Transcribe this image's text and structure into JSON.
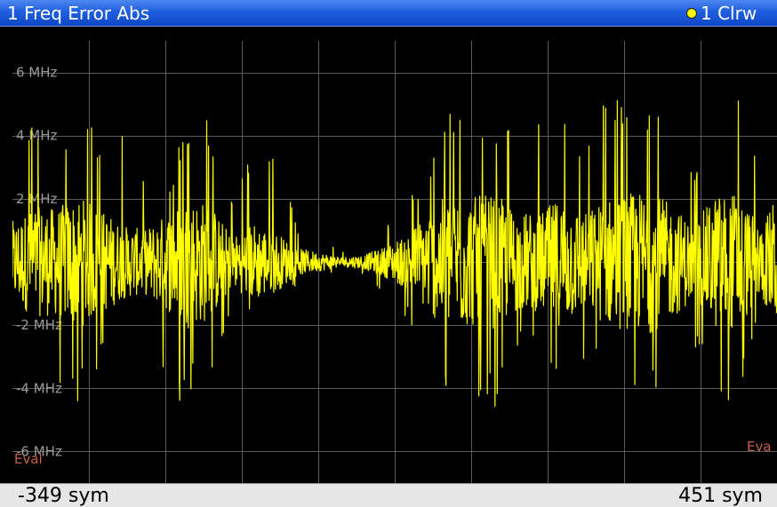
{
  "window": {
    "title": "1 Freq Error Abs",
    "trace_label": "1 Clrw"
  },
  "colors": {
    "title_bar": "#1f5fe0",
    "background": "#000000",
    "grid": "#5a5a5a",
    "trace": "#ffff00",
    "tick_label": "#9a9a9a",
    "eval_label": "#c8604a"
  },
  "footer": {
    "x_start": "-349 sym",
    "x_stop": "451 sym"
  },
  "eval_labels": {
    "left": "Eval",
    "right": "Eva"
  },
  "chart_data": {
    "type": "line",
    "title": "1 Freq Error Abs",
    "xlabel": "",
    "ylabel": "",
    "xlim": [
      -349,
      451
    ],
    "ylim": [
      -7,
      7
    ],
    "grid": true,
    "y_ticks": [
      {
        "value": 6,
        "label": "6 MHz"
      },
      {
        "value": 4,
        "label": "4 MHz"
      },
      {
        "value": 2,
        "label": "2 MHz"
      },
      {
        "value": 0,
        "label": ""
      },
      {
        "value": -2,
        "label": "-2 MHz"
      },
      {
        "value": -4,
        "label": "-4 MHz"
      },
      {
        "value": -6,
        "label": "-6 MHz"
      }
    ],
    "series": [
      {
        "color": "#ffff00",
        "x": [
          -349,
          -326,
          -303,
          -280,
          -257,
          -234,
          -211,
          -188,
          -165,
          -142,
          -119,
          -96,
          -73,
          -50,
          -27,
          -4,
          19,
          42,
          65,
          88,
          111,
          134,
          157,
          180,
          203,
          226,
          249,
          272,
          295,
          318,
          341,
          364,
          387,
          410,
          433,
          451
        ],
        "y_max": [
          2.2,
          5.0,
          3.1,
          4.9,
          4.1,
          4.7,
          3.0,
          2.1,
          4.9,
          4.7,
          2.0,
          3.6,
          3.6,
          1.1,
          0.8,
          0.4,
          0.6,
          1.1,
          2.2,
          3.0,
          5.3,
          4.3,
          4.9,
          4.0,
          4.7,
          4.7,
          3.2,
          5.6,
          5.3,
          5.4,
          4.9,
          2.6,
          5.0,
          5.7,
          3.0,
          4.7
        ],
        "y_min": [
          -3.5,
          -2.7,
          -4.5,
          -4.4,
          -3.5,
          -0.5,
          -1.5,
          -4.7,
          -4.4,
          -3.6,
          -1.5,
          -2.0,
          -0.6,
          -0.8,
          -0.5,
          -0.3,
          -0.4,
          -1.1,
          -1.8,
          -4.6,
          -4.5,
          -4.9,
          -4.6,
          -3.0,
          -2.2,
          -4.6,
          -3.6,
          -3.4,
          -4.4,
          -4.7,
          -3.1,
          -2.7,
          -4.6,
          -4.3,
          -1.8,
          -4.8
        ]
      }
    ]
  }
}
